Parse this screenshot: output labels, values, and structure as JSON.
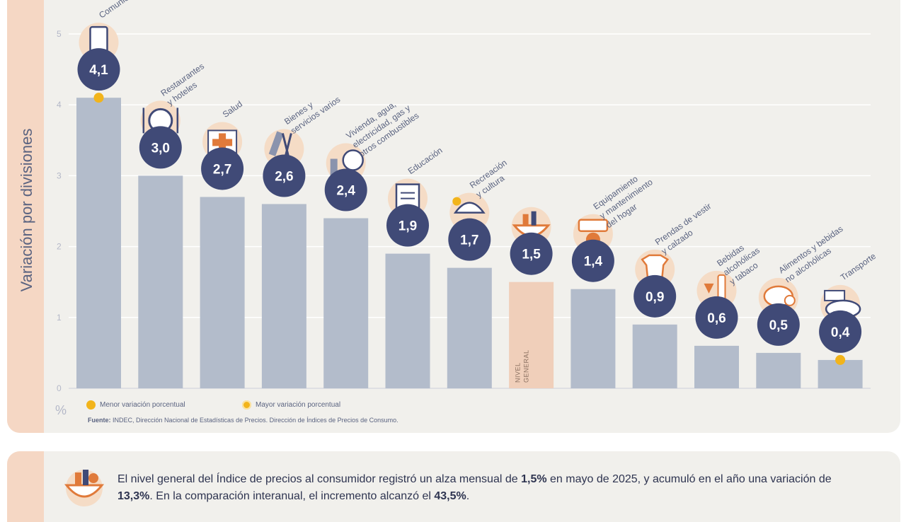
{
  "chart_data": {
    "type": "bar",
    "ylabel": "Variación por divisiones",
    "unit": "%",
    "yticks": [
      0,
      1,
      2,
      3,
      4,
      5
    ],
    "ylim": [
      0,
      5
    ],
    "grid": true,
    "categories": [
      "Comunicación",
      "Restaurantes y hoteles",
      "Salud",
      "Bienes y servicios varios",
      "Vivienda, agua, electricidad, gas y otros combustibles",
      "Educación",
      "Recreación y cultura",
      "Nivel General",
      "Equipamiento y mantenimiento del hogar",
      "Prendas de vestir y calzado",
      "Bebidas alcohólicas y tabaco",
      "Alimentos y bebidas no alcohólicas",
      "Transporte"
    ],
    "category_labels": [
      [
        "Comunic"
      ],
      [
        "Restaurantes",
        "y hoteles"
      ],
      [
        "Salud"
      ],
      [
        "Bienes y",
        "servicios varios"
      ],
      [
        "Vivienda, agua,",
        "electricidad, gas y",
        "otros combustibles"
      ],
      [
        "Educación"
      ],
      [
        "Recreación",
        "y cultura"
      ],
      [],
      [
        "Equipamiento",
        "y mantenimiento",
        "del hogar"
      ],
      [
        "Prendas de vestir",
        "y calzado"
      ],
      [
        "Bebidas",
        "alcohólicas",
        "y tabaco"
      ],
      [
        "Alimentos y bebidas",
        "no alcohólicas"
      ],
      [
        "Transporte"
      ]
    ],
    "values": [
      4.1,
      3.0,
      2.7,
      2.6,
      2.4,
      1.9,
      1.7,
      1.5,
      1.4,
      0.9,
      0.6,
      0.5,
      0.4
    ],
    "value_labels": [
      "4,1",
      "3,0",
      "2,7",
      "2,6",
      "2,4",
      "1,9",
      "1,7",
      "1,5",
      "1,4",
      "0,9",
      "0,6",
      "0,5",
      "0,4"
    ],
    "bar_labels": {
      "7": [
        "NIVEL",
        "GENERAL"
      ]
    },
    "highlight_index": 7,
    "max_index": 0,
    "min_index": 12,
    "icons": [
      "phone-icon",
      "dining-icon",
      "medical-kit-icon",
      "scissors-comb-icon",
      "bulb-faucet-icon",
      "book-icon",
      "beach-umbrella-icon",
      "basket-icon",
      "ac-unit-icon",
      "tshirt-shoe-icon",
      "wine-glass-icon",
      "chicken-food-icon",
      "bus-icon"
    ],
    "colors": {
      "bar": "#b3bccb",
      "highlight_bar": "#f0cfba",
      "value_circle": "#404a77",
      "icon_bg": "#f5dcc6",
      "dot": "#f2b41b",
      "grid": "#ffffff"
    }
  },
  "legend": {
    "min": "Menor variación porcentual",
    "max": "Mayor variación porcentual"
  },
  "source": {
    "label": "Fuente:",
    "text": " INDEC, Dirección Nacional de Estadísticas de Precios. Dirección de Índices de Precios de Consumo."
  },
  "summary": {
    "t1": "El nivel general del Índice de precios al consumidor registró un alza mensual de ",
    "b1": "1,5%",
    "t2": " en mayo de 2025, y acumuló en el año una variación de ",
    "b2": "13,3%",
    "t3": ". En la comparación interanual, el incremento alcanzó el ",
    "b3": "43,5%",
    "t4": "."
  }
}
